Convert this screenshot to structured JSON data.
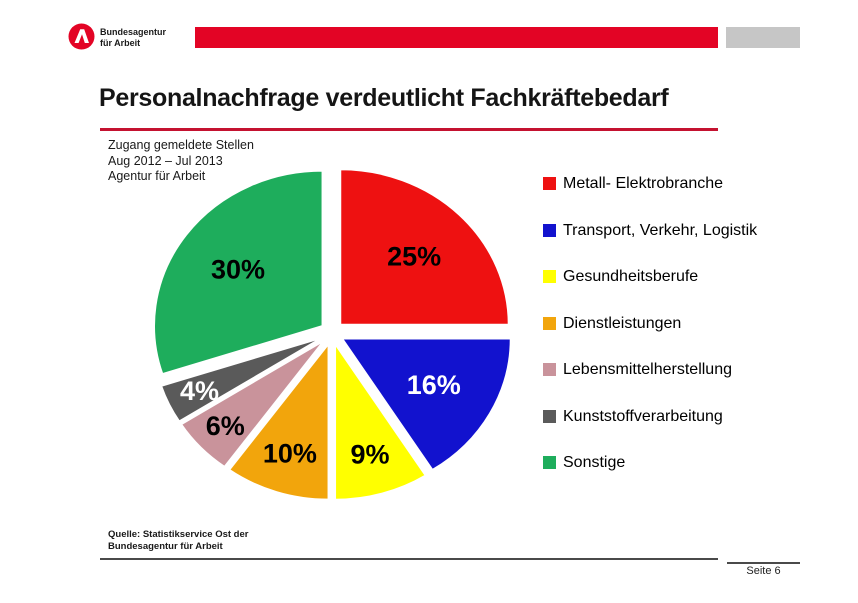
{
  "slide": {
    "logo": {
      "line1": "Bundesagentur",
      "line2": "für Arbeit"
    },
    "title": "Personalnachfrage verdeutlicht Fachkräftebedarf",
    "note_lines": [
      "Zugang gemeldete Stellen",
      "Aug 2012 – Jul 2013",
      "Agentur für Arbeit"
    ],
    "source_lines": [
      "Quelle: Statistikservice Ost der",
      "Bundesagentur für Arbeit"
    ],
    "page_label": "Seite 6"
  },
  "colors": {
    "brand_red": "#E30425",
    "bar_gray": "#C6C6C6",
    "title_underline": "#C41230",
    "footer_line": "#4a4a4a"
  },
  "chart_data": {
    "type": "pie",
    "title": "Zugang gemeldete Stellen, Aug 2012 – Jul 2013, Agentur für Arbeit",
    "exploded": true,
    "start_angle_deg": 0,
    "direction": "clockwise",
    "legend_position": "right",
    "slices": [
      {
        "label": "Metall- Elektrobranche",
        "value": 25,
        "display": "25%",
        "color": "#EE1111",
        "label_color": "#000000"
      },
      {
        "label": "Transport, Verkehr, Logistik",
        "value": 16,
        "display": "16%",
        "color": "#1212CE",
        "label_color": "#FFFFFF"
      },
      {
        "label": "Gesundheitsberufe",
        "value": 9,
        "display": "9%",
        "color": "#FFFF00",
        "label_color": "#000000"
      },
      {
        "label": "Dienstleistungen",
        "value": 10,
        "display": "10%",
        "color": "#F2A50C",
        "label_color": "#000000"
      },
      {
        "label": "Lebensmittelherstellung",
        "value": 6,
        "display": "6%",
        "color": "#C9939B",
        "label_color": "#000000"
      },
      {
        "label": "Kunststoffverarbeitung",
        "value": 4,
        "display": "4%",
        "color": "#5A5A5A",
        "label_color": "#FFFFFF"
      },
      {
        "label": "Sonstige",
        "value": 30,
        "display": "30%",
        "color": "#1EAD5C",
        "label_color": "#000000"
      }
    ]
  }
}
